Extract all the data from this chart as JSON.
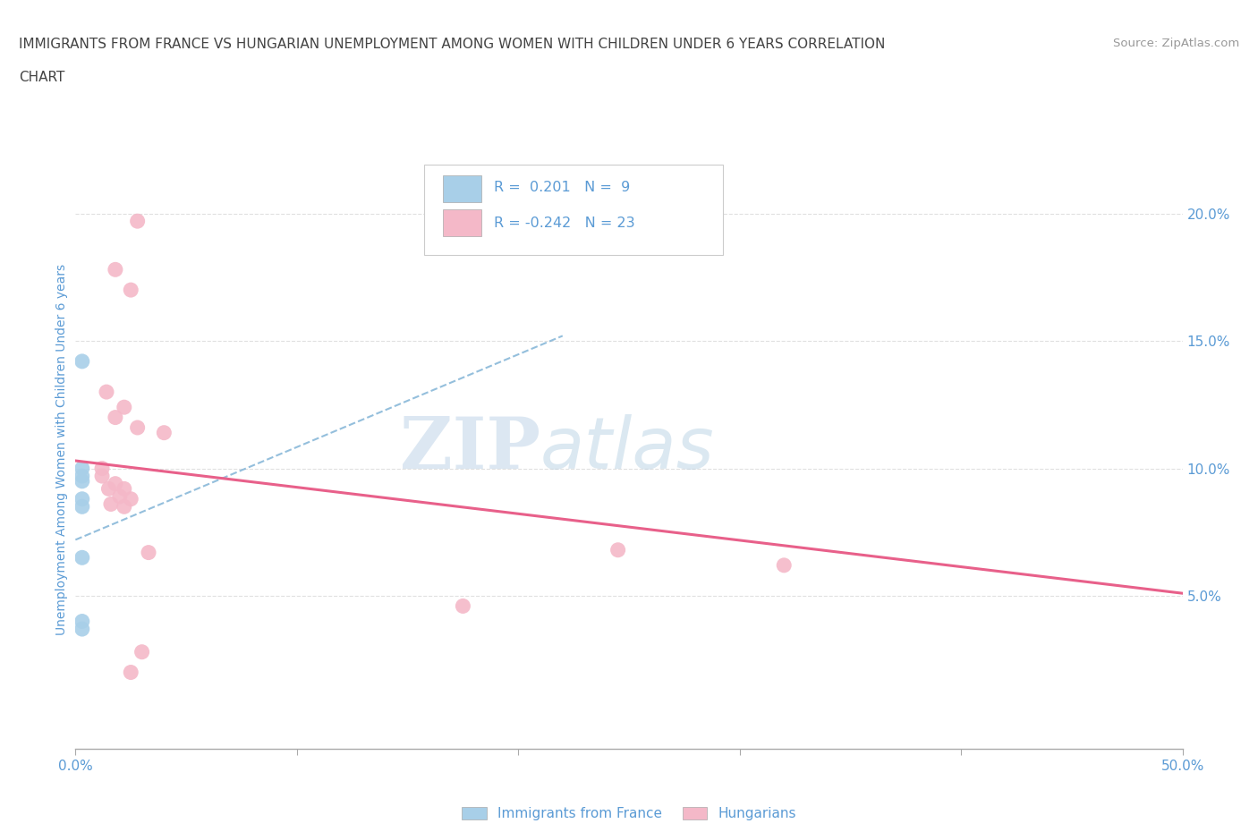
{
  "title_line1": "IMMIGRANTS FROM FRANCE VS HUNGARIAN UNEMPLOYMENT AMONG WOMEN WITH CHILDREN UNDER 6 YEARS CORRELATION",
  "title_line2": "CHART",
  "source": "Source: ZipAtlas.com",
  "ylabel": "Unemployment Among Women with Children Under 6 years",
  "x_min": 0.0,
  "x_max": 0.5,
  "y_min": -0.01,
  "y_max": 0.225,
  "x_ticks": [
    0.0,
    0.1,
    0.2,
    0.3,
    0.4,
    0.5
  ],
  "x_tick_labels": [
    "0.0%",
    "",
    "",
    "",
    "",
    "50.0%"
  ],
  "y_ticks_right": [
    0.05,
    0.1,
    0.15,
    0.2
  ],
  "y_tick_labels_right": [
    "5.0%",
    "10.0%",
    "15.0%",
    "20.0%"
  ],
  "blue_color": "#a8cfe8",
  "pink_color": "#f4b8c8",
  "blue_line_color": "#7aafd4",
  "pink_line_color": "#e8608a",
  "blue_scatter": [
    [
      0.003,
      0.142
    ],
    [
      0.003,
      0.1
    ],
    [
      0.003,
      0.097
    ],
    [
      0.003,
      0.095
    ],
    [
      0.003,
      0.088
    ],
    [
      0.003,
      0.085
    ],
    [
      0.003,
      0.065
    ],
    [
      0.003,
      0.04
    ],
    [
      0.003,
      0.037
    ]
  ],
  "pink_scatter": [
    [
      0.028,
      0.197
    ],
    [
      0.018,
      0.178
    ],
    [
      0.025,
      0.17
    ],
    [
      0.014,
      0.13
    ],
    [
      0.022,
      0.124
    ],
    [
      0.018,
      0.12
    ],
    [
      0.028,
      0.116
    ],
    [
      0.04,
      0.114
    ],
    [
      0.012,
      0.1
    ],
    [
      0.012,
      0.097
    ],
    [
      0.018,
      0.094
    ],
    [
      0.015,
      0.092
    ],
    [
      0.022,
      0.092
    ],
    [
      0.02,
      0.089
    ],
    [
      0.025,
      0.088
    ],
    [
      0.016,
      0.086
    ],
    [
      0.022,
      0.085
    ],
    [
      0.033,
      0.067
    ],
    [
      0.245,
      0.068
    ],
    [
      0.32,
      0.062
    ],
    [
      0.175,
      0.046
    ],
    [
      0.03,
      0.028
    ],
    [
      0.025,
      0.02
    ]
  ],
  "blue_R": 0.201,
  "blue_N": 9,
  "pink_R": -0.242,
  "pink_N": 23,
  "blue_line_x": [
    0.0,
    0.22
  ],
  "blue_line_y": [
    0.072,
    0.152
  ],
  "pink_line_x": [
    0.0,
    0.5
  ],
  "pink_line_y": [
    0.103,
    0.051
  ],
  "legend_label_blue": "Immigrants from France",
  "legend_label_pink": "Hungarians",
  "watermark_zip": "ZIP",
  "watermark_atlas": "atlas",
  "background_color": "#ffffff",
  "grid_color": "#e0e0e0",
  "title_color": "#444444",
  "tick_color": "#5b9bd5",
  "legend_text_color": "#5b9bd5"
}
